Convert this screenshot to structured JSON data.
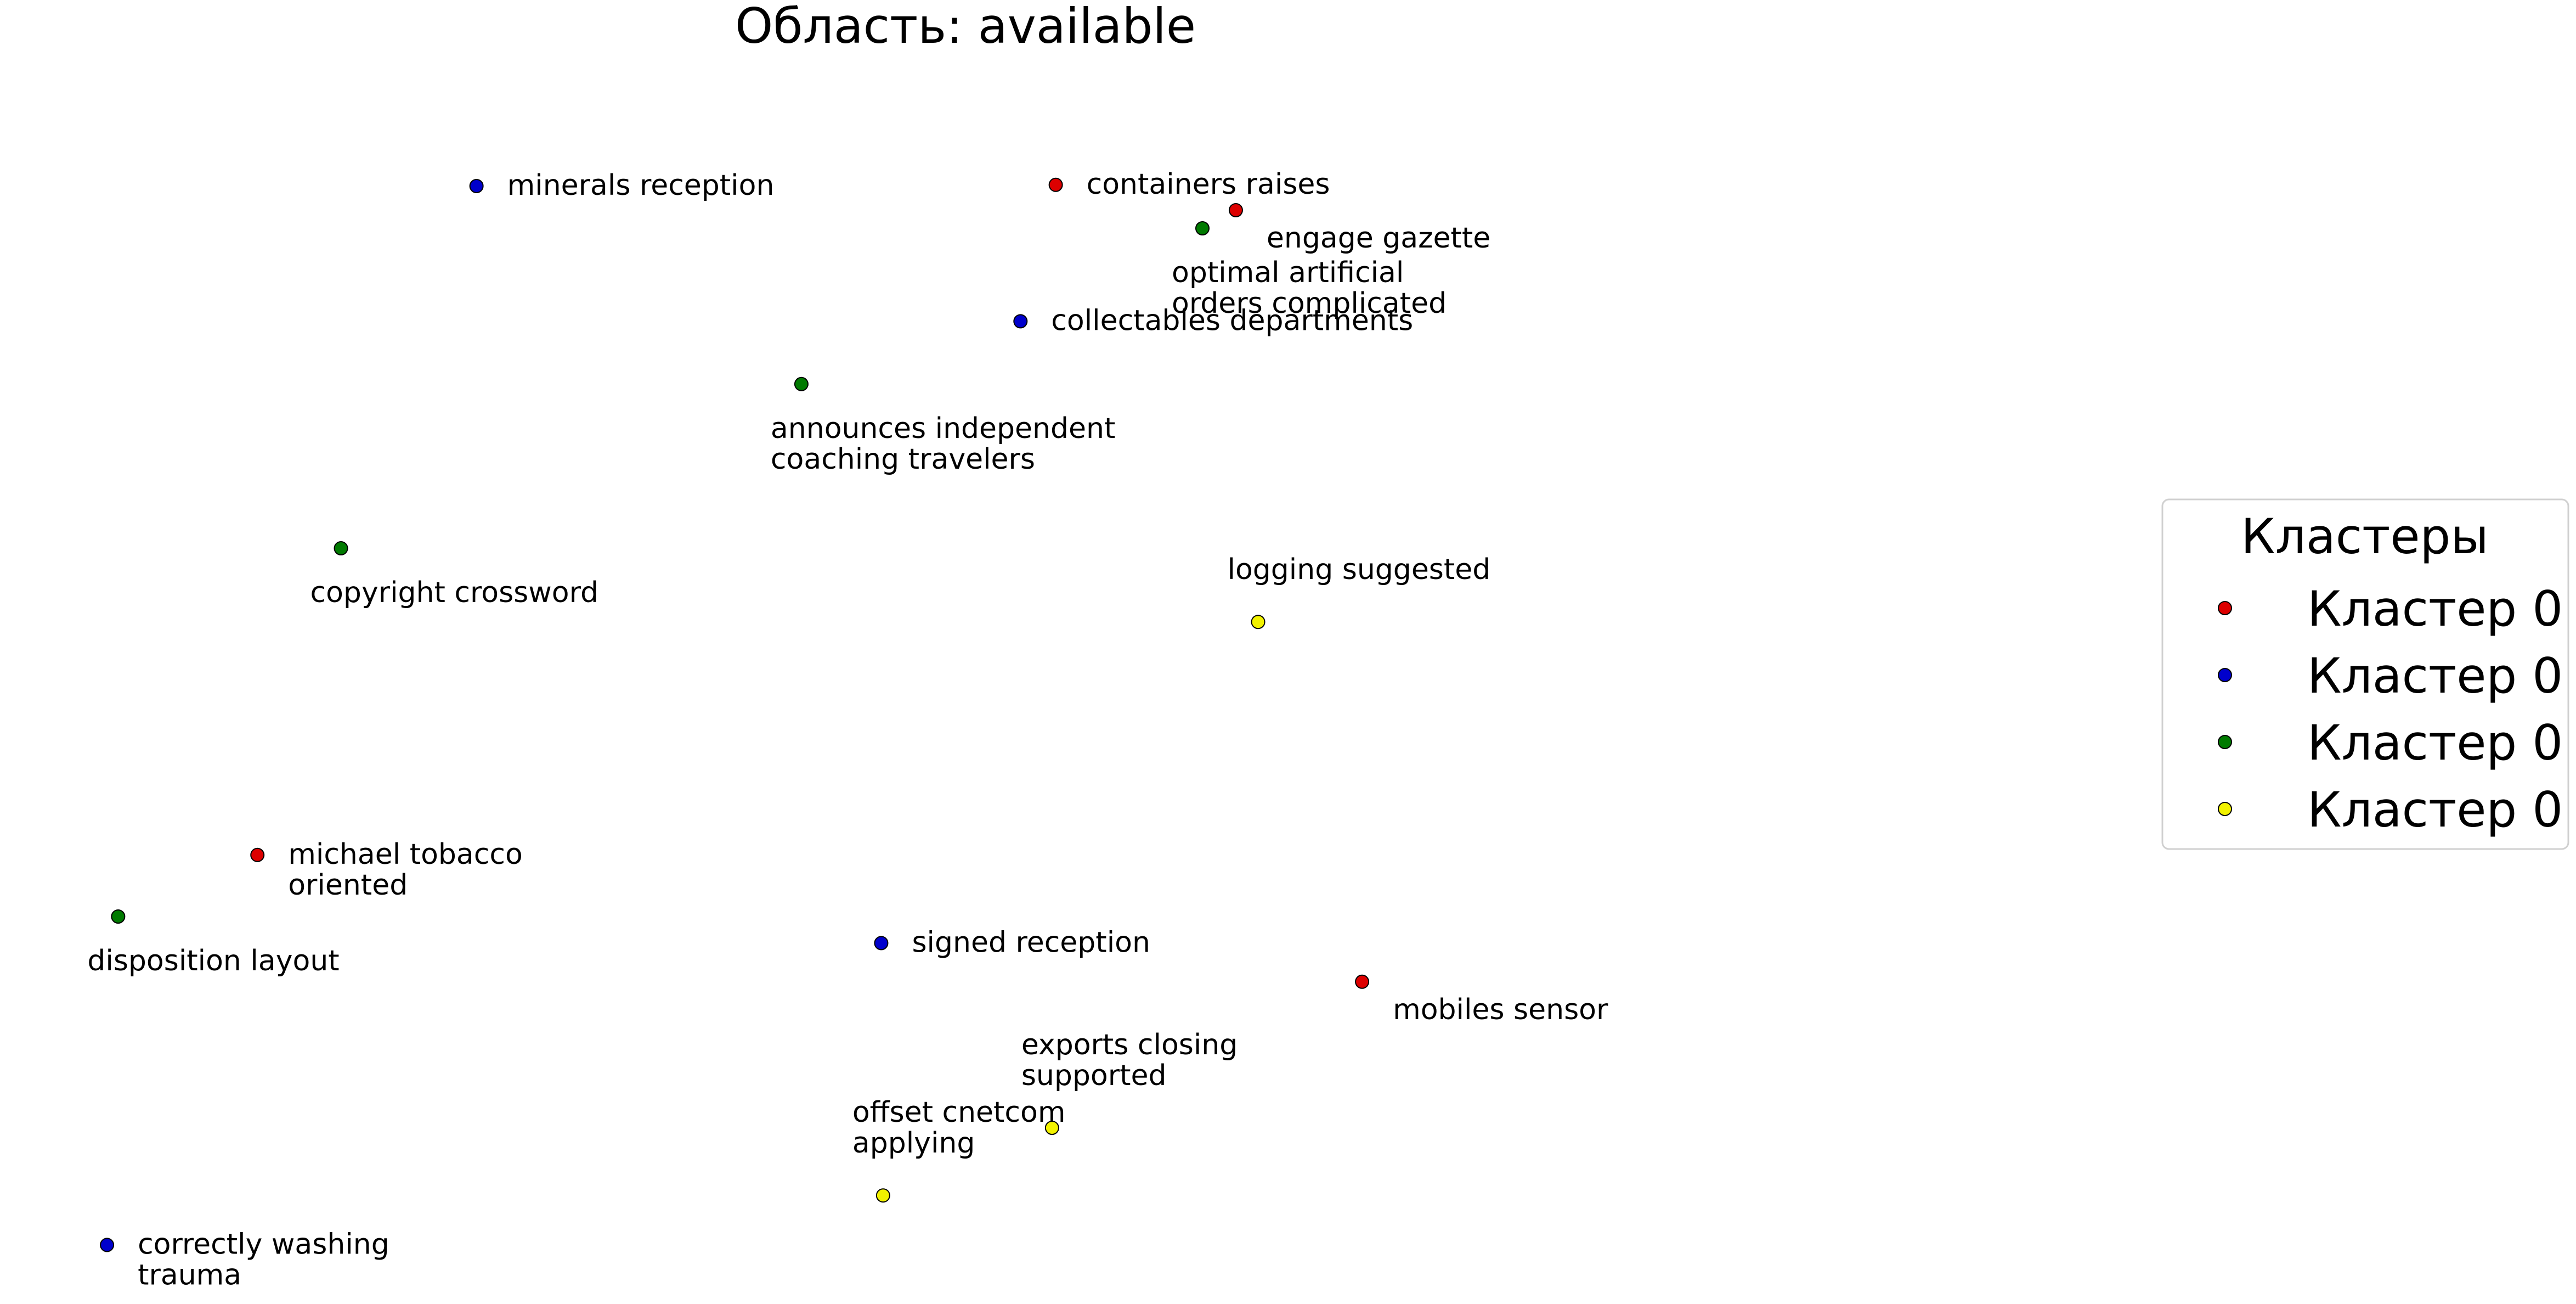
{
  "chart_data": {
    "type": "scatter",
    "title": "Область: available",
    "xlabel": "",
    "ylabel": "",
    "grid": false,
    "axes_visible": false,
    "legend": {
      "title": "Кластеры",
      "placement": "right",
      "entries": [
        {
          "label": "Кластер 0",
          "color": "#dd0000"
        },
        {
          "label": "Кластер 0",
          "color": "#0000cc"
        },
        {
          "label": "Кластер 0",
          "color": "#007a00"
        },
        {
          "label": "Кластер 0",
          "color": "#f2f200"
        }
      ]
    },
    "points": [
      {
        "label": "minerals reception",
        "x": 19.3,
        "y": 85.5,
        "series": 1,
        "label_side": "right"
      },
      {
        "label": "containers raises",
        "x": 50.5,
        "y": 85.6,
        "series": 0,
        "label_side": "right"
      },
      {
        "label": "engage gazette",
        "x": 60.2,
        "y": 83.5,
        "series": 0,
        "label_side": "below-right"
      },
      {
        "label": "optimal artificial\norders complicated",
        "x": 58.4,
        "y": 82.0,
        "series": 2,
        "label_side": "below"
      },
      {
        "label": "collectables departments",
        "x": 48.6,
        "y": 74.3,
        "series": 1,
        "label_side": "right"
      },
      {
        "label": "announces independent\ncoaching travelers",
        "x": 36.8,
        "y": 69.1,
        "series": 2,
        "label_side": "below"
      },
      {
        "label": "copyright crossword",
        "x": 12.0,
        "y": 55.5,
        "series": 2,
        "label_side": "below"
      },
      {
        "label": "logging suggested",
        "x": 61.4,
        "y": 49.4,
        "series": 3,
        "label_side": "above"
      },
      {
        "label": "michael tobacco\noriented",
        "x": 7.5,
        "y": 30.1,
        "series": 0,
        "label_side": "right"
      },
      {
        "label": "disposition layout",
        "x": 0.0,
        "y": 25.0,
        "series": 2,
        "label_side": "below"
      },
      {
        "label": "signed reception",
        "x": 41.1,
        "y": 22.8,
        "series": 1,
        "label_side": "right"
      },
      {
        "label": "mobiles sensor",
        "x": 67.0,
        "y": 19.6,
        "series": 0,
        "label_side": "below-right"
      },
      {
        "label": "exports closing\nsupported",
        "x": 50.3,
        "y": 7.5,
        "series": 3,
        "label_side": "above-left"
      },
      {
        "label": "offset cnetcom\napplying",
        "x": 41.2,
        "y": 1.9,
        "series": 3,
        "label_side": "above-left"
      },
      {
        "label": "correctly washing\ntrauma",
        "x": -0.6,
        "y": -2.2,
        "series": 1,
        "label_side": "right"
      }
    ],
    "xlim": [
      -4.0,
      100.0
    ],
    "ylim": [
      -5.0,
      95.0
    ]
  }
}
